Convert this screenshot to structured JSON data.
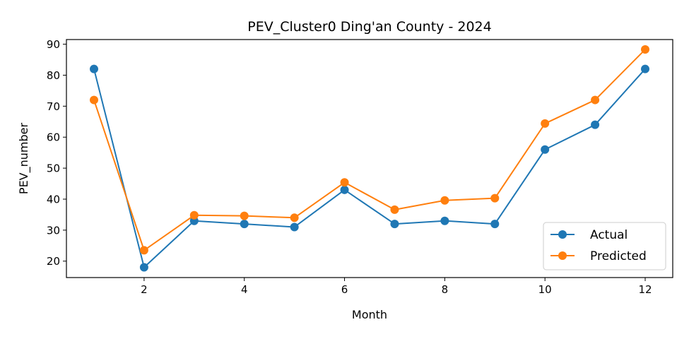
{
  "chart_data": {
    "type": "line",
    "title": "PEV_Cluster0 Ding'an County - 2024",
    "xlabel": "Month",
    "ylabel": "PEV_number",
    "xlim": [
      0.45,
      12.55
    ],
    "ylim": [
      14.7,
      91.5
    ],
    "xticks": [
      2,
      4,
      6,
      8,
      10,
      12
    ],
    "yticks": [
      20,
      30,
      40,
      50,
      60,
      70,
      80,
      90
    ],
    "grid": false,
    "legend_position": "lower-right",
    "x": [
      1,
      2,
      3,
      4,
      5,
      6,
      7,
      8,
      9,
      10,
      11,
      12
    ],
    "series": [
      {
        "name": "Actual",
        "color": "#1f77b4",
        "values": [
          82,
          18,
          33,
          32,
          31,
          43,
          32,
          33,
          32,
          56,
          64,
          82
        ]
      },
      {
        "name": "Predicted",
        "color": "#ff7f0e",
        "values": [
          72,
          23.5,
          34.8,
          34.6,
          34,
          45.4,
          36.6,
          39.6,
          40.3,
          64.4,
          72,
          88.3
        ]
      }
    ]
  }
}
